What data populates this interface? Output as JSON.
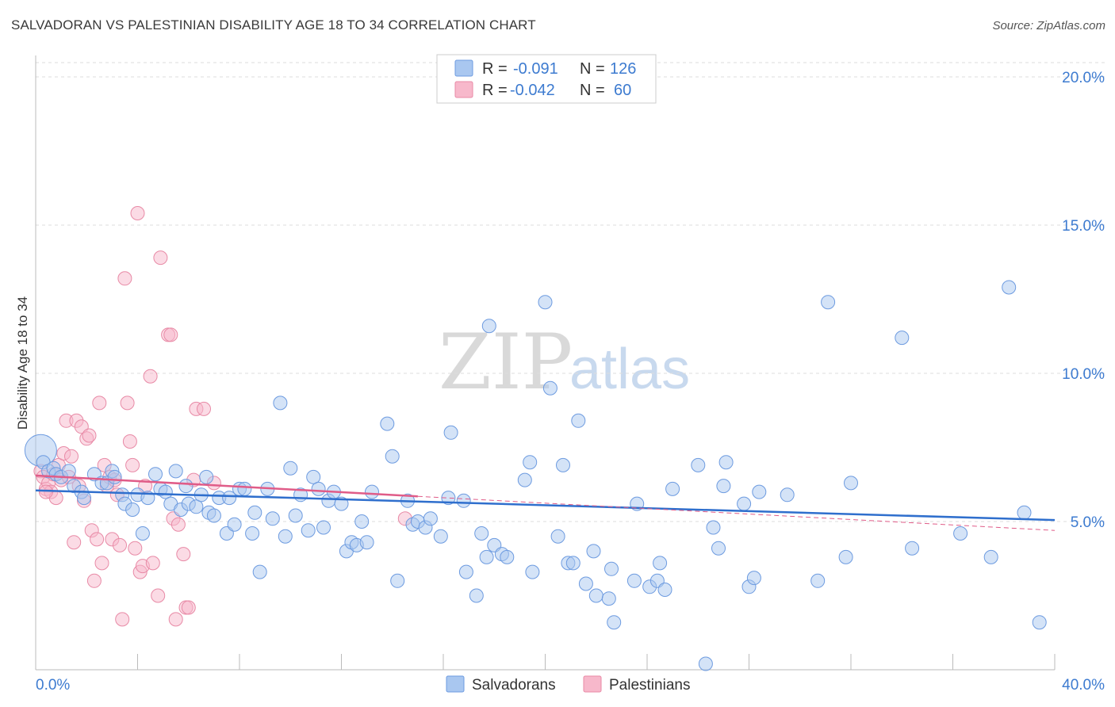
{
  "header": {
    "title": "SALVADORAN VS PALESTINIAN DISABILITY AGE 18 TO 34 CORRELATION CHART",
    "source": "Source: ZipAtlas.com"
  },
  "watermark": {
    "zip": "ZIP",
    "atlas": "atlas"
  },
  "legend": {
    "rows": [
      {
        "r_label": "R =",
        "r_value": "-0.091",
        "n_label": "N =",
        "n_value": "126",
        "color": "#a9c7f0",
        "stroke": "#6d9be0"
      },
      {
        "r_label": "R =",
        "r_value": "-0.042",
        "n_label": "N =",
        "n_value": "60",
        "color": "#f7b8cb",
        "stroke": "#e88aa6"
      }
    ]
  },
  "bottom_legend": {
    "items": [
      {
        "label": "Salvadorans",
        "color": "#a9c7f0",
        "stroke": "#6d9be0"
      },
      {
        "label": "Palestinians",
        "color": "#f7b8cb",
        "stroke": "#e88aa6"
      }
    ]
  },
  "chart_data": {
    "type": "scatter",
    "title": "SALVADORAN VS PALESTINIAN DISABILITY AGE 18 TO 34 CORRELATION CHART",
    "xlabel": "",
    "ylabel": "Disability Age 18 to 34",
    "xlim": [
      0,
      40
    ],
    "ylim": [
      0,
      20.5
    ],
    "x_tick_labels": [
      "0.0%",
      "40.0%"
    ],
    "y_ticks": [
      5,
      10,
      15,
      20
    ],
    "y_tick_labels": [
      "5.0%",
      "10.0%",
      "15.0%",
      "20.0%"
    ],
    "grid": true,
    "legend_position": "top-center",
    "series": [
      {
        "name": "Salvadorans",
        "color": "#a9c7f0",
        "stroke": "#6d9be0",
        "trend": {
          "x": [
            0,
            40
          ],
          "y": [
            6.05,
            5.05
          ],
          "color": "#2f6fcd"
        },
        "points": [
          [
            0.2,
            7.4
          ],
          [
            0.3,
            7.0
          ],
          [
            0.5,
            6.7
          ],
          [
            0.7,
            6.8
          ],
          [
            0.8,
            6.6
          ],
          [
            1.0,
            6.5
          ],
          [
            1.3,
            6.7
          ],
          [
            1.5,
            6.2
          ],
          [
            1.8,
            6.0
          ],
          [
            1.9,
            5.8
          ],
          [
            2.3,
            6.6
          ],
          [
            2.6,
            6.3
          ],
          [
            2.8,
            6.3
          ],
          [
            3.0,
            6.7
          ],
          [
            3.1,
            6.5
          ],
          [
            3.4,
            5.9
          ],
          [
            3.5,
            5.6
          ],
          [
            3.8,
            5.4
          ],
          [
            4.0,
            5.9
          ],
          [
            4.2,
            4.6
          ],
          [
            4.4,
            5.8
          ],
          [
            4.7,
            6.6
          ],
          [
            4.9,
            6.1
          ],
          [
            5.1,
            6.0
          ],
          [
            5.3,
            5.6
          ],
          [
            5.5,
            6.7
          ],
          [
            5.7,
            5.4
          ],
          [
            5.9,
            6.2
          ],
          [
            6.0,
            5.6
          ],
          [
            6.3,
            5.5
          ],
          [
            6.5,
            5.9
          ],
          [
            6.7,
            6.5
          ],
          [
            6.8,
            5.3
          ],
          [
            7.0,
            5.2
          ],
          [
            7.2,
            5.8
          ],
          [
            7.5,
            4.6
          ],
          [
            7.6,
            5.8
          ],
          [
            7.8,
            4.9
          ],
          [
            8.0,
            6.1
          ],
          [
            8.2,
            6.1
          ],
          [
            8.5,
            4.6
          ],
          [
            8.6,
            5.3
          ],
          [
            8.8,
            3.3
          ],
          [
            9.1,
            6.1
          ],
          [
            9.3,
            5.1
          ],
          [
            9.6,
            9.0
          ],
          [
            9.8,
            4.5
          ],
          [
            10.0,
            6.8
          ],
          [
            10.2,
            5.2
          ],
          [
            10.4,
            5.9
          ],
          [
            10.7,
            4.7
          ],
          [
            10.9,
            6.5
          ],
          [
            11.1,
            6.1
          ],
          [
            11.3,
            4.8
          ],
          [
            11.5,
            5.7
          ],
          [
            11.7,
            6.0
          ],
          [
            12.0,
            5.6
          ],
          [
            12.2,
            4.0
          ],
          [
            12.4,
            4.3
          ],
          [
            12.6,
            4.2
          ],
          [
            12.8,
            5.0
          ],
          [
            13.0,
            4.3
          ],
          [
            13.2,
            6.0
          ],
          [
            13.8,
            8.3
          ],
          [
            14.0,
            7.2
          ],
          [
            14.2,
            3.0
          ],
          [
            14.6,
            5.7
          ],
          [
            14.8,
            4.9
          ],
          [
            15.0,
            5.0
          ],
          [
            15.3,
            4.8
          ],
          [
            15.5,
            5.1
          ],
          [
            15.9,
            4.5
          ],
          [
            16.2,
            5.8
          ],
          [
            16.3,
            8.0
          ],
          [
            16.8,
            5.7
          ],
          [
            16.9,
            3.3
          ],
          [
            17.3,
            2.5
          ],
          [
            17.5,
            4.6
          ],
          [
            17.7,
            3.8
          ],
          [
            17.8,
            11.6
          ],
          [
            18.0,
            4.2
          ],
          [
            18.3,
            3.9
          ],
          [
            18.5,
            3.8
          ],
          [
            19.2,
            6.4
          ],
          [
            19.4,
            7.0
          ],
          [
            19.5,
            3.3
          ],
          [
            20.0,
            12.4
          ],
          [
            20.2,
            9.5
          ],
          [
            20.5,
            4.5
          ],
          [
            20.7,
            6.9
          ],
          [
            20.9,
            3.6
          ],
          [
            21.1,
            3.6
          ],
          [
            21.3,
            8.4
          ],
          [
            21.6,
            2.9
          ],
          [
            21.9,
            4.0
          ],
          [
            22.0,
            2.5
          ],
          [
            22.5,
            2.4
          ],
          [
            22.6,
            3.4
          ],
          [
            22.7,
            1.6
          ],
          [
            23.5,
            3.0
          ],
          [
            23.6,
            5.6
          ],
          [
            24.1,
            2.8
          ],
          [
            24.4,
            3.0
          ],
          [
            24.5,
            3.6
          ],
          [
            24.7,
            2.7
          ],
          [
            25.0,
            6.1
          ],
          [
            26.0,
            6.9
          ],
          [
            26.3,
            0.2
          ],
          [
            26.6,
            4.8
          ],
          [
            26.8,
            4.1
          ],
          [
            27.0,
            6.2
          ],
          [
            27.1,
            7.0
          ],
          [
            27.8,
            5.6
          ],
          [
            28.0,
            2.8
          ],
          [
            28.2,
            3.1
          ],
          [
            28.4,
            6.0
          ],
          [
            29.5,
            5.9
          ],
          [
            30.7,
            3.0
          ],
          [
            31.1,
            12.4
          ],
          [
            31.8,
            3.8
          ],
          [
            32.0,
            6.3
          ],
          [
            34.0,
            11.2
          ],
          [
            34.4,
            4.1
          ],
          [
            36.3,
            4.6
          ],
          [
            37.5,
            3.8
          ],
          [
            38.2,
            12.9
          ],
          [
            38.8,
            5.3
          ],
          [
            39.4,
            1.6
          ]
        ]
      },
      {
        "name": "Palestinians",
        "color": "#f7b8cb",
        "stroke": "#e88aa6",
        "trend": {
          "x": [
            0,
            15
          ],
          "y": [
            6.55,
            5.85
          ],
          "x_dashed": [
            15,
            40
          ],
          "y_dashed": [
            5.85,
            4.7
          ],
          "color": "#e05c88"
        },
        "points": [
          [
            0.2,
            6.7
          ],
          [
            0.3,
            6.5
          ],
          [
            0.4,
            6.1
          ],
          [
            0.5,
            6.3
          ],
          [
            0.6,
            6.0
          ],
          [
            0.7,
            6.6
          ],
          [
            0.8,
            5.8
          ],
          [
            0.9,
            6.9
          ],
          [
            1.0,
            6.4
          ],
          [
            1.1,
            7.3
          ],
          [
            1.2,
            8.4
          ],
          [
            1.3,
            6.5
          ],
          [
            1.4,
            7.2
          ],
          [
            1.5,
            4.3
          ],
          [
            1.6,
            8.4
          ],
          [
            1.7,
            6.2
          ],
          [
            1.8,
            8.2
          ],
          [
            1.9,
            5.7
          ],
          [
            2.0,
            7.8
          ],
          [
            2.1,
            7.9
          ],
          [
            2.2,
            4.7
          ],
          [
            2.3,
            3.0
          ],
          [
            2.4,
            4.4
          ],
          [
            2.5,
            9.0
          ],
          [
            2.6,
            3.6
          ],
          [
            2.7,
            6.9
          ],
          [
            2.8,
            6.2
          ],
          [
            2.9,
            6.5
          ],
          [
            3.0,
            4.4
          ],
          [
            3.1,
            6.4
          ],
          [
            3.2,
            5.9
          ],
          [
            3.3,
            4.2
          ],
          [
            3.4,
            1.7
          ],
          [
            3.5,
            13.2
          ],
          [
            3.6,
            9.0
          ],
          [
            3.7,
            7.7
          ],
          [
            3.8,
            6.9
          ],
          [
            3.9,
            4.1
          ],
          [
            4.0,
            15.4
          ],
          [
            4.1,
            3.3
          ],
          [
            4.2,
            3.5
          ],
          [
            4.3,
            6.2
          ],
          [
            4.5,
            9.9
          ],
          [
            4.6,
            3.6
          ],
          [
            4.8,
            2.5
          ],
          [
            4.9,
            13.9
          ],
          [
            5.2,
            11.3
          ],
          [
            5.3,
            11.3
          ],
          [
            5.4,
            5.1
          ],
          [
            5.5,
            1.7
          ],
          [
            5.6,
            4.9
          ],
          [
            5.8,
            3.9
          ],
          [
            5.9,
            2.1
          ],
          [
            6.0,
            2.1
          ],
          [
            6.2,
            6.4
          ],
          [
            6.3,
            8.8
          ],
          [
            6.6,
            8.8
          ],
          [
            7.0,
            6.3
          ],
          [
            14.5,
            5.1
          ],
          [
            0.4,
            6.0
          ]
        ]
      }
    ]
  }
}
